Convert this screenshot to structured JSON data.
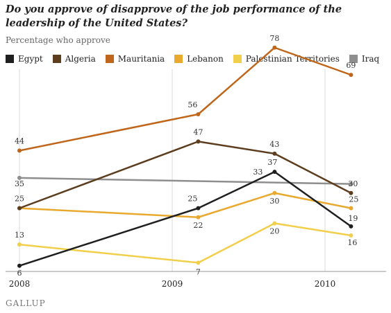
{
  "chart_data": {
    "type": "line",
    "title": "Do you approve of disapprove of the job performance of the leadership of the United States?",
    "subtitle": "Percentage who approve",
    "x_ticks": [
      "2008",
      "2009",
      "2010"
    ],
    "ylim": [
      0,
      90
    ],
    "grid": "vertical",
    "legend_position": "top",
    "series": [
      {
        "name": "Egypt",
        "color": "#1f1f1f",
        "x": [
          2008.0,
          2009.17,
          2009.67,
          2010.17
        ],
        "values": [
          6,
          25,
          37,
          19
        ],
        "labels": [
          "6",
          "25",
          "37",
          "19"
        ]
      },
      {
        "name": "Algeria",
        "color": "#5c3d1e",
        "x": [
          2008.0,
          2009.17,
          2009.67,
          2010.17
        ],
        "values": [
          25,
          47,
          43,
          30
        ],
        "labels": [
          "25",
          "47",
          "43",
          "30"
        ]
      },
      {
        "name": "Mauritania",
        "color": "#c0661a",
        "x": [
          2008.0,
          2009.17,
          2009.67,
          2010.17
        ],
        "values": [
          44,
          56,
          78,
          69
        ],
        "labels": [
          "44",
          "56",
          "78",
          "69"
        ]
      },
      {
        "name": "Lebanon",
        "color": "#e8a92e",
        "x": [
          2008.0,
          2009.17,
          2009.67,
          2010.17
        ],
        "values": [
          25,
          22,
          30,
          25
        ],
        "labels": [
          "",
          "22",
          "30",
          "25"
        ]
      },
      {
        "name": "Palestinian Territories",
        "color": "#f2cf4b",
        "x": [
          2008.0,
          2009.17,
          2009.67,
          2010.17
        ],
        "values": [
          13,
          7,
          20,
          16
        ],
        "labels": [
          "13",
          "7",
          "20",
          "16"
        ]
      },
      {
        "name": "Iraq",
        "color": "#8e8e8e",
        "x": [
          2008.0,
          2010.17
        ],
        "values": [
          35,
          33
        ],
        "labels": [
          "35",
          "33"
        ]
      }
    ]
  },
  "footer": {
    "logo_text": "GALLUP"
  }
}
